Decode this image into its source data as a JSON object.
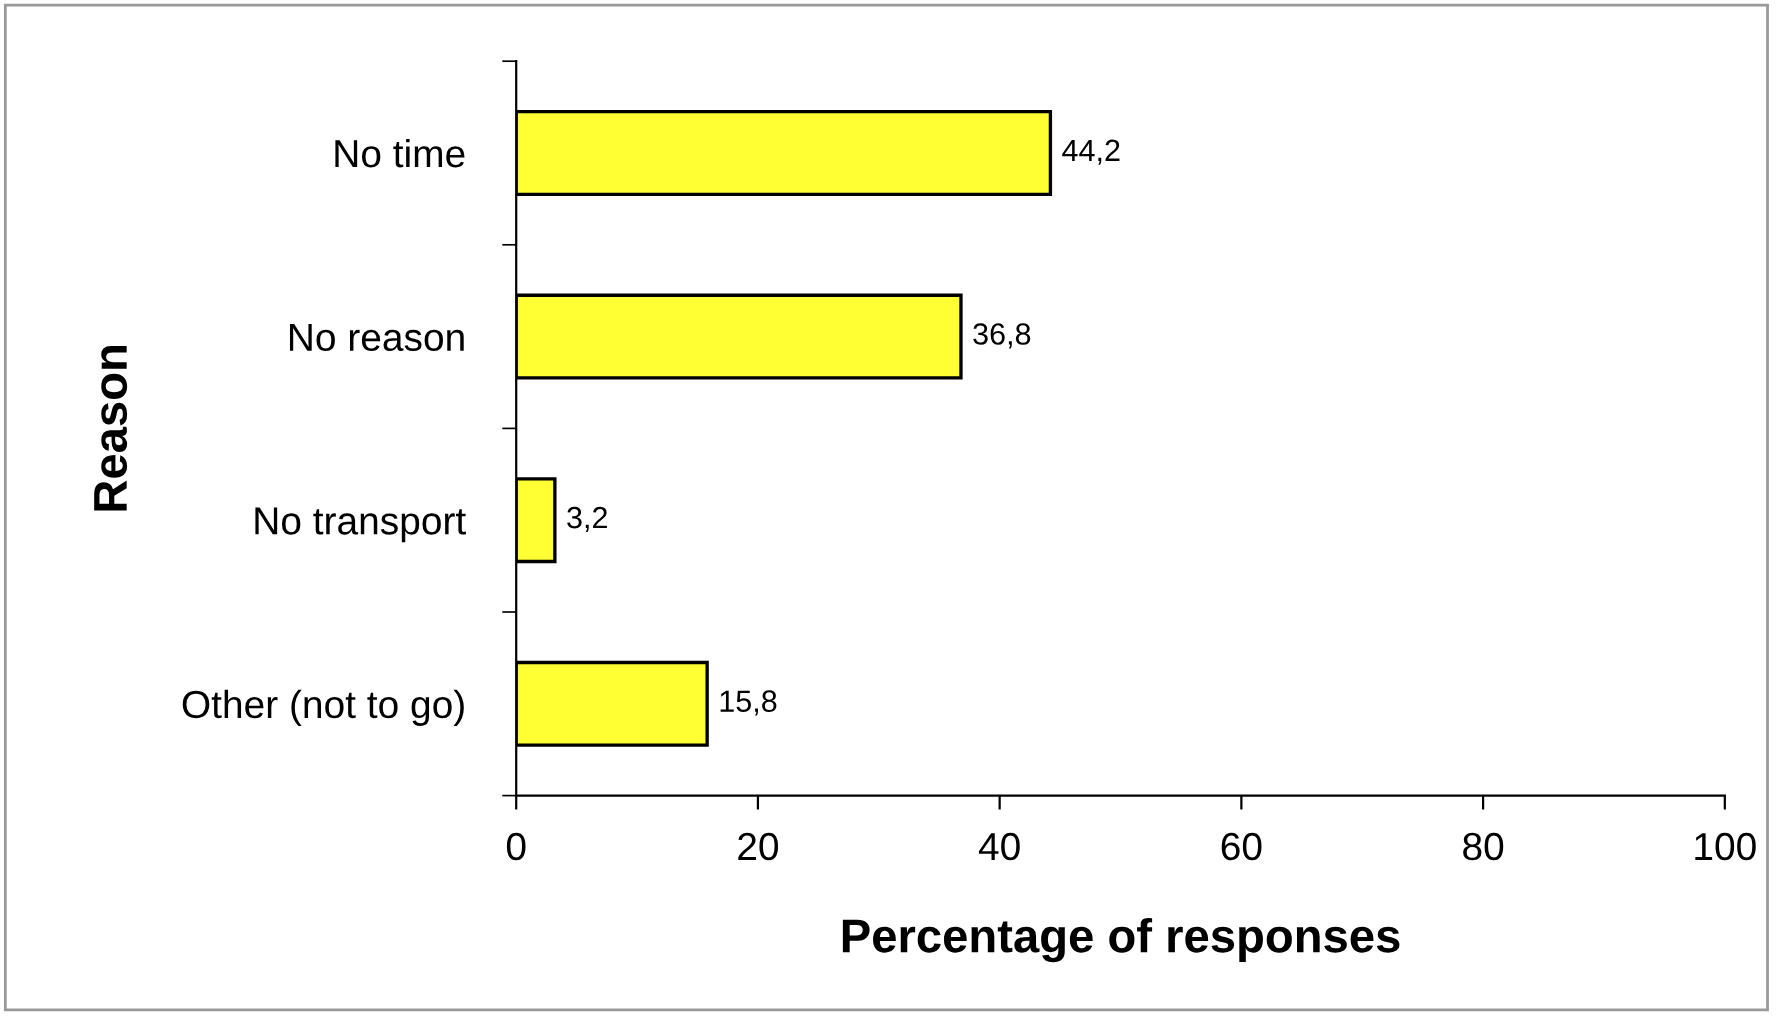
{
  "chart_data": {
    "type": "bar",
    "orientation": "horizontal",
    "xlabel": "Percentage of responses",
    "ylabel": "Reason",
    "categories": [
      "No time",
      "No reason",
      "No transport",
      "Other (not to go)"
    ],
    "values": [
      44.2,
      36.8,
      3.2,
      15.8
    ],
    "value_labels": [
      "44,2",
      "36,8",
      "3,2",
      "15,8"
    ],
    "color": "#ffff33",
    "xlim": [
      0,
      100
    ],
    "xticks": [
      0,
      20,
      40,
      60,
      80,
      100
    ],
    "grid": false,
    "legend": false
  }
}
